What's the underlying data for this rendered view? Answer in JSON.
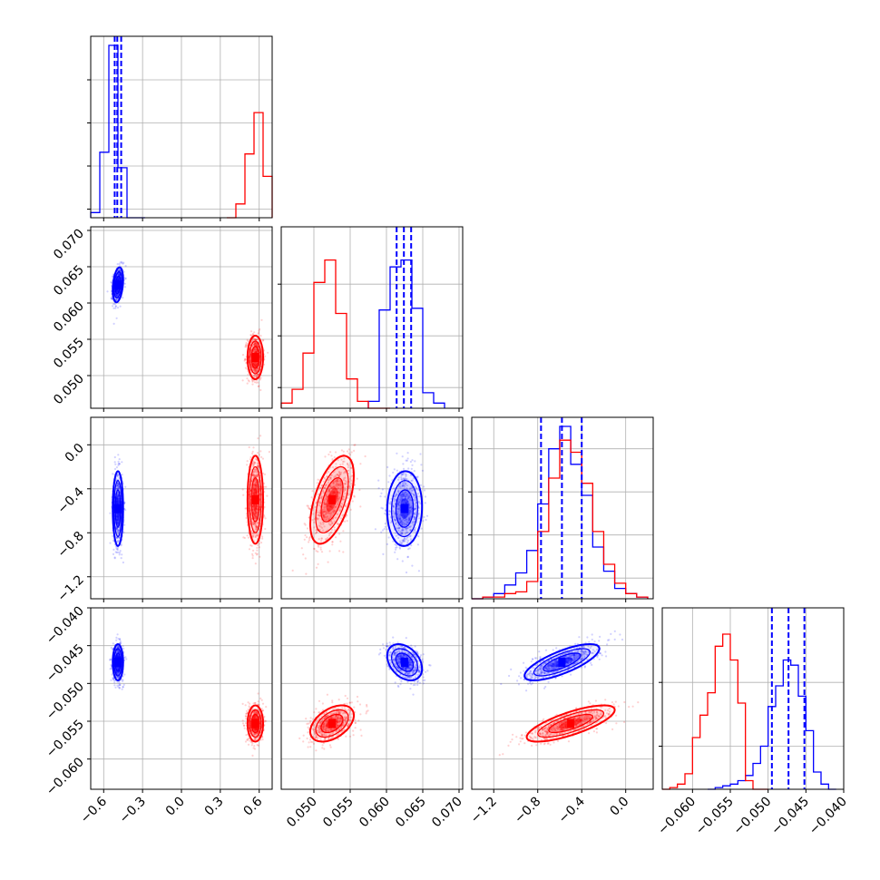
{
  "chart_data": {
    "type": "corner",
    "grid": true,
    "colors": {
      "blue": "#0000ff",
      "red": "#ff0000"
    },
    "parameters": [
      {
        "ticks": [
          -0.6,
          -0.3,
          0.0,
          0.3,
          0.6
        ],
        "tick_labels": [
          "−0.6",
          "−0.3",
          "0.0",
          "0.3",
          "0.6"
        ],
        "range": [
          -0.7,
          0.7
        ]
      },
      {
        "ticks": [
          0.05,
          0.055,
          0.06,
          0.065,
          0.07
        ],
        "tick_labels": [
          "0.050",
          "0.055",
          "0.060",
          "0.065",
          "0.070"
        ],
        "range": [
          0.0455,
          0.0705
        ]
      },
      {
        "ticks": [
          -1.2,
          -0.8,
          -0.4,
          0.0
        ],
        "tick_labels": [
          "−1.2",
          "−0.8",
          "−0.4",
          "0.0"
        ],
        "range": [
          -1.4,
          0.25
        ]
      },
      {
        "ticks": [
          -0.06,
          -0.055,
          -0.05,
          -0.045,
          -0.04
        ],
        "tick_labels": [
          "−0.060",
          "−0.055",
          "−0.050",
          "−0.045",
          "−0.040"
        ],
        "range": [
          -0.064,
          -0.04
        ]
      }
    ],
    "series": [
      {
        "color": "blue",
        "mean": [
          -0.49,
          0.0625,
          -0.58,
          -0.0472
        ],
        "std": [
          0.02,
          0.0012,
          0.17,
          0.0012
        ],
        "quantiles": [
          [
            -0.515,
            -0.495,
            -0.465
          ],
          [
            0.0614,
            0.0624,
            0.0634
          ],
          [
            -0.77,
            -0.58,
            -0.4
          ],
          [
            -0.0495,
            -0.0473,
            -0.0452
          ]
        ]
      },
      {
        "color": "red",
        "mean": [
          0.57,
          0.0525,
          -0.5,
          -0.0553
        ],
        "std": [
          0.03,
          0.0015,
          0.2,
          0.0012
        ],
        "quantiles": []
      }
    ],
    "histograms": [
      {
        "blue": {
          "edges": [
            -0.7,
            -0.63,
            -0.56,
            -0.49,
            -0.42,
            -0.35,
            -0.28
          ],
          "counts": [
            0.03,
            0.38,
            1.0,
            0.29,
            0.0,
            0.0
          ]
        },
        "red": {
          "edges": [
            0.35,
            0.42,
            0.49,
            0.56,
            0.63,
            0.7
          ],
          "counts": [
            0.0,
            0.08,
            0.37,
            0.61,
            0.24
          ]
        }
      },
      {
        "red": {
          "edges": [
            0.0455,
            0.047,
            0.0485,
            0.05,
            0.0515,
            0.053,
            0.0545,
            0.056,
            0.0575,
            0.059,
            0.0605
          ],
          "counts": [
            0.03,
            0.11,
            0.32,
            0.73,
            0.86,
            0.55,
            0.17,
            0.04,
            0.0,
            0.0
          ]
        },
        "blue": {
          "edges": [
            0.0575,
            0.059,
            0.0605,
            0.062,
            0.0635,
            0.065,
            0.0665,
            0.068
          ],
          "counts": [
            0.04,
            0.57,
            0.82,
            0.86,
            0.58,
            0.09,
            0.03
          ]
        }
      },
      {
        "blue": {
          "edges": [
            -1.4,
            -1.3,
            -1.2,
            -1.1,
            -1.0,
            -0.9,
            -0.8,
            -0.7,
            -0.6,
            -0.5,
            -0.4,
            -0.3,
            -0.2,
            -0.1,
            0.0,
            0.1,
            0.2
          ],
          "counts": [
            0.0,
            0.01,
            0.03,
            0.08,
            0.15,
            0.28,
            0.55,
            0.87,
            1.0,
            0.78,
            0.6,
            0.3,
            0.16,
            0.06,
            0.03,
            0.01
          ]
        },
        "red": {
          "edges": [
            -1.4,
            -1.3,
            -1.2,
            -1.1,
            -1.0,
            -0.9,
            -0.8,
            -0.7,
            -0.6,
            -0.5,
            -0.4,
            -0.3,
            -0.2,
            -0.1,
            0.0,
            0.1,
            0.2
          ],
          "counts": [
            0.0,
            0.01,
            0.01,
            0.03,
            0.04,
            0.1,
            0.39,
            0.7,
            0.92,
            0.85,
            0.67,
            0.39,
            0.2,
            0.09,
            0.03,
            0.01
          ]
        }
      },
      {
        "red": {
          "edges": [
            -0.064,
            -0.063,
            -0.062,
            -0.061,
            -0.06,
            -0.059,
            -0.058,
            -0.057,
            -0.056,
            -0.055,
            -0.054,
            -0.053,
            -0.052,
            -0.051,
            -0.05
          ],
          "counts": [
            0.0,
            0.01,
            0.03,
            0.09,
            0.3,
            0.43,
            0.56,
            0.83,
            0.9,
            0.75,
            0.5,
            0.05,
            0.0,
            0.0
          ]
        },
        "blue": {
          "edges": [
            -0.058,
            -0.057,
            -0.056,
            -0.055,
            -0.054,
            -0.053,
            -0.052,
            -0.051,
            -0.05,
            -0.049,
            -0.048,
            -0.047,
            -0.046,
            -0.045,
            -0.044,
            -0.043,
            -0.042,
            -0.041
          ],
          "counts": [
            0.0,
            0.01,
            0.02,
            0.03,
            0.05,
            0.08,
            0.15,
            0.25,
            0.48,
            0.6,
            0.75,
            0.72,
            0.54,
            0.34,
            0.1,
            0.03,
            0.0
          ]
        }
      }
    ]
  }
}
